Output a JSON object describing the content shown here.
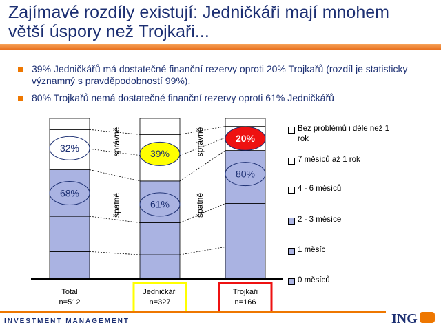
{
  "slide": {
    "title": "Zajímavé rozdíly existují: Jedničkáři mají mnohem větší úspory než Trojkaři...",
    "bullets": [
      "39% Jedničkářů má dostatečné finanční rezervy oproti 20% Trojkařů (rozdíl je statisticky významný s pravděpodobností 99%).",
      "80% Trojkařů nemá dostatečné finanční rezervy oproti 61% Jedničkářů"
    ],
    "footer": "INVESTMENT MANAGEMENT",
    "logo": "ING"
  },
  "chart_data": {
    "type": "stacked_bar",
    "categories": [
      "Total",
      "Jedničkáři",
      "Trojkaři"
    ],
    "sample_sizes": [
      "n=512",
      "n=327",
      "n=166"
    ],
    "highlight_colors": [
      null,
      "#ffff00",
      "#ee1111"
    ],
    "ylim": [
      0,
      100
    ],
    "series": [
      {
        "name": "0 měsíců",
        "color": "#aab3e2",
        "values": [
          17,
          15,
          20
        ]
      },
      {
        "name": "1 měsíc",
        "color": "#aab3e2",
        "values": [
          22,
          20,
          27
        ]
      },
      {
        "name": "2 - 3 měsíce",
        "color": "#aab3e2",
        "values": [
          29,
          26,
          33
        ]
      },
      {
        "name": "4 - 6 měsíců",
        "color": "#ffffff",
        "values": [
          13,
          16,
          8
        ]
      },
      {
        "name": "7 měsíců až 1 rok",
        "color": "#ffffff",
        "values": [
          12,
          13,
          7
        ]
      },
      {
        "name": "Bez problémů i déle než 1 rok",
        "color": "#ffffff",
        "values": [
          7,
          10,
          5
        ]
      }
    ],
    "group_labels": {
      "lower": [
        "68%",
        "61%",
        "80%"
      ],
      "upper": [
        "32%",
        "39%",
        "20%"
      ]
    },
    "side_labels": {
      "upper": "správně",
      "lower": "špatně"
    }
  }
}
